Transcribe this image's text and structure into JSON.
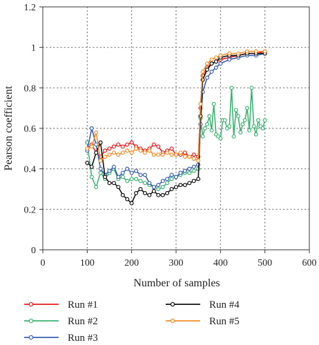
{
  "chart_data": {
    "type": "line",
    "title": "",
    "xlabel": "Number of samples",
    "ylabel": "Pearson coefficient",
    "xlim": [
      0,
      600
    ],
    "ylim": [
      0,
      1.2
    ],
    "xticks": [
      0,
      100,
      200,
      300,
      400,
      500,
      600
    ],
    "yticks": [
      0,
      0.2,
      0.4,
      0.6,
      0.8,
      1,
      1.2
    ],
    "ytick_labels": [
      "0",
      "0.2",
      "0.4",
      "0.6",
      "0.8",
      "1",
      "1.2"
    ],
    "grid": "dotted",
    "legend_position": "bottom",
    "series": [
      {
        "name": "Run #1",
        "color": "#e31a1c",
        "x": [
          100,
          110,
          120,
          130,
          140,
          150,
          160,
          170,
          180,
          190,
          200,
          210,
          220,
          230,
          240,
          250,
          260,
          270,
          280,
          290,
          300,
          310,
          320,
          330,
          340,
          350,
          355,
          360,
          370,
          380,
          390,
          400,
          420,
          440,
          460,
          480,
          500
        ],
        "y": [
          0.5,
          0.52,
          0.48,
          0.46,
          0.49,
          0.5,
          0.51,
          0.52,
          0.51,
          0.52,
          0.53,
          0.51,
          0.5,
          0.49,
          0.5,
          0.52,
          0.51,
          0.48,
          0.49,
          0.5,
          0.47,
          0.47,
          0.48,
          0.46,
          0.47,
          0.46,
          0.7,
          0.86,
          0.9,
          0.92,
          0.93,
          0.94,
          0.95,
          0.96,
          0.97,
          0.97,
          0.98
        ]
      },
      {
        "name": "Run #2",
        "color": "#3cb371",
        "x": [
          100,
          110,
          120,
          130,
          140,
          150,
          160,
          170,
          180,
          190,
          200,
          210,
          220,
          230,
          240,
          250,
          260,
          270,
          280,
          290,
          300,
          310,
          320,
          330,
          340,
          350,
          355,
          360,
          365,
          370,
          375,
          380,
          385,
          390,
          395,
          400,
          405,
          410,
          415,
          420,
          425,
          430,
          435,
          440,
          445,
          450,
          455,
          460,
          465,
          470,
          475,
          480,
          485,
          490,
          495,
          500
        ],
        "y": [
          0.53,
          0.36,
          0.31,
          0.38,
          0.35,
          0.38,
          0.4,
          0.35,
          0.36,
          0.34,
          0.35,
          0.35,
          0.34,
          0.33,
          0.32,
          0.31,
          0.3,
          0.31,
          0.33,
          0.35,
          0.36,
          0.37,
          0.38,
          0.38,
          0.39,
          0.4,
          0.65,
          0.56,
          0.6,
          0.62,
          0.66,
          0.59,
          0.72,
          0.57,
          0.56,
          0.55,
          0.64,
          0.64,
          0.6,
          0.61,
          0.8,
          0.56,
          0.69,
          0.66,
          0.58,
          0.62,
          0.64,
          0.7,
          0.59,
          0.8,
          0.61,
          0.57,
          0.64,
          0.61,
          0.6,
          0.64
        ]
      },
      {
        "name": "Run #3",
        "color": "#3a5fb0",
        "x": [
          100,
          110,
          120,
          130,
          140,
          150,
          160,
          170,
          180,
          190,
          200,
          210,
          220,
          230,
          240,
          250,
          260,
          270,
          280,
          290,
          300,
          310,
          320,
          330,
          340,
          350,
          355,
          360,
          370,
          380,
          390,
          400,
          420,
          440,
          460,
          480,
          500
        ],
        "y": [
          0.49,
          0.6,
          0.52,
          0.4,
          0.37,
          0.39,
          0.41,
          0.36,
          0.38,
          0.4,
          0.38,
          0.39,
          0.37,
          0.37,
          0.33,
          0.31,
          0.32,
          0.34,
          0.35,
          0.37,
          0.36,
          0.38,
          0.39,
          0.4,
          0.41,
          0.42,
          0.62,
          0.78,
          0.85,
          0.88,
          0.9,
          0.92,
          0.94,
          0.95,
          0.96,
          0.96,
          0.97
        ]
      },
      {
        "name": "Run #4",
        "color": "#111111",
        "x": [
          100,
          110,
          120,
          130,
          140,
          150,
          160,
          170,
          180,
          190,
          200,
          210,
          220,
          230,
          240,
          250,
          260,
          270,
          280,
          290,
          300,
          310,
          320,
          330,
          340,
          350,
          355,
          360,
          370,
          380,
          390,
          400,
          420,
          440,
          460,
          480,
          500
        ],
        "y": [
          0.43,
          0.41,
          0.48,
          0.53,
          0.36,
          0.33,
          0.33,
          0.31,
          0.27,
          0.25,
          0.23,
          0.28,
          0.3,
          0.28,
          0.27,
          0.29,
          0.27,
          0.27,
          0.28,
          0.3,
          0.31,
          0.32,
          0.32,
          0.33,
          0.34,
          0.35,
          0.66,
          0.84,
          0.89,
          0.92,
          0.93,
          0.95,
          0.96,
          0.96,
          0.97,
          0.97,
          0.97
        ]
      },
      {
        "name": "Run #5",
        "color": "#f28c28",
        "x": [
          100,
          110,
          120,
          130,
          140,
          150,
          160,
          170,
          180,
          190,
          200,
          210,
          220,
          230,
          240,
          250,
          260,
          270,
          280,
          290,
          300,
          310,
          320,
          330,
          340,
          350,
          355,
          360,
          370,
          380,
          390,
          400,
          420,
          440,
          460,
          480,
          500
        ],
        "y": [
          0.5,
          0.51,
          0.58,
          0.44,
          0.46,
          0.47,
          0.48,
          0.47,
          0.48,
          0.49,
          0.48,
          0.5,
          0.49,
          0.48,
          0.49,
          0.47,
          0.47,
          0.47,
          0.48,
          0.47,
          0.47,
          0.48,
          0.46,
          0.46,
          0.45,
          0.44,
          0.72,
          0.88,
          0.92,
          0.94,
          0.95,
          0.96,
          0.97,
          0.97,
          0.98,
          0.98,
          0.98
        ]
      }
    ]
  }
}
